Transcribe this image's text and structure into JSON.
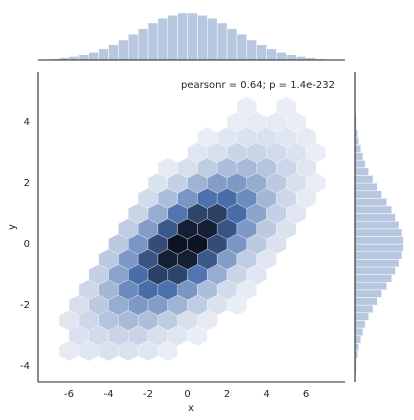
{
  "chart_data": [
    {
      "type": "hexbin",
      "x_label": "x",
      "y_label": "y",
      "annotation": "pearsonr = 0.64; p = 1.4e-232",
      "xlim": [
        -7.57,
        7.97
      ],
      "ylim": [
        -4.52,
        5.64
      ],
      "xticks": [
        -6,
        -4,
        -2,
        0,
        2,
        4,
        6
      ],
      "yticks": [
        -4,
        -2,
        0,
        2,
        4
      ],
      "color": "#4c72b0",
      "hexbins": {
        "x": [
          -6,
          -5,
          -4,
          -3,
          -2,
          -1,
          -5.5,
          -4.5,
          -3.5,
          -2.5,
          -1.5,
          -0.5,
          0.5,
          -6,
          -5,
          -4,
          -3,
          -2,
          -1,
          0,
          1,
          -5.5,
          -4.5,
          -3.5,
          -2.5,
          -1.5,
          -0.5,
          0.5,
          1.5,
          2.5,
          -5,
          -4,
          -3,
          -2,
          -1,
          0,
          1,
          2,
          3,
          -4.5,
          -3.5,
          -2.5,
          -1.5,
          -0.5,
          0.5,
          1.5,
          2.5,
          3.5,
          -4,
          -3,
          -2,
          -1,
          0,
          1,
          2,
          3,
          4,
          -3.5,
          -2.5,
          -1.5,
          -0.5,
          0.5,
          1.5,
          2.5,
          3.5,
          4.5,
          -3,
          -2,
          -1,
          0,
          1,
          2,
          3,
          4,
          5,
          -2.5,
          -1.5,
          -0.5,
          0.5,
          1.5,
          2.5,
          3.5,
          4.5,
          5.5,
          -2,
          -1,
          0,
          1,
          2,
          3,
          4,
          5,
          6,
          -1.5,
          -0.5,
          0.5,
          1.5,
          2.5,
          3.5,
          4.5,
          5.5,
          6.5,
          -1,
          0,
          1,
          2,
          3,
          4,
          5,
          6,
          0.5,
          1.5,
          2.5,
          3.5,
          4.5,
          5.5,
          6.5,
          1,
          2,
          3,
          4,
          5,
          6,
          2.5,
          3.5,
          4.5,
          5.5,
          3,
          5
        ],
        "y": [
          -3.5,
          -3.5,
          -3.5,
          -3.5,
          -3.5,
          -3.5,
          -3,
          -3,
          -3,
          -3,
          -3,
          -3,
          -3,
          -2.5,
          -2.5,
          -2.5,
          -2.5,
          -2.5,
          -2.5,
          -2.5,
          -2.5,
          -2,
          -2,
          -2,
          -2,
          -2,
          -2,
          -2,
          -2,
          -2,
          -1.5,
          -1.5,
          -1.5,
          -1.5,
          -1.5,
          -1.5,
          -1.5,
          -1.5,
          -1.5,
          -1,
          -1,
          -1,
          -1,
          -1,
          -1,
          -1,
          -1,
          -1,
          -0.5,
          -0.5,
          -0.5,
          -0.5,
          -0.5,
          -0.5,
          -0.5,
          -0.5,
          -0.5,
          0,
          0,
          0,
          0,
          0,
          0,
          0,
          0,
          0,
          0.5,
          0.5,
          0.5,
          0.5,
          0.5,
          0.5,
          0.5,
          0.5,
          0.5,
          1,
          1,
          1,
          1,
          1,
          1,
          1,
          1,
          1,
          1.5,
          1.5,
          1.5,
          1.5,
          1.5,
          1.5,
          1.5,
          1.5,
          1.5,
          2,
          2,
          2,
          2,
          2,
          2,
          2,
          2,
          2,
          2.5,
          2.5,
          2.5,
          2.5,
          2.5,
          2.5,
          2.5,
          2.5,
          3,
          3,
          3,
          3,
          3,
          3,
          3,
          3.5,
          3.5,
          3.5,
          3.5,
          3.5,
          3.5,
          4,
          4,
          4,
          4,
          4.5,
          4.5
        ],
        "counts": [
          2,
          3,
          4,
          4,
          3,
          1,
          4,
          6,
          8,
          8,
          5,
          3,
          1,
          3,
          7,
          12,
          15,
          14,
          10,
          5,
          2,
          5,
          11,
          19,
          24,
          23,
          17,
          10,
          4,
          1,
          7,
          16,
          28,
          36,
          35,
          25,
          14,
          6,
          2,
          9,
          21,
          36,
          47,
          46,
          34,
          19,
          8,
          3,
          11,
          24,
          42,
          55,
          55,
          41,
          23,
          10,
          3,
          11,
          25,
          44,
          58,
          58,
          44,
          25,
          11,
          4,
          10,
          23,
          41,
          55,
          55,
          42,
          24,
          11,
          4,
          8,
          19,
          34,
          46,
          47,
          36,
          21,
          9,
          3,
          6,
          14,
          25,
          35,
          36,
          28,
          16,
          7,
          2,
          4,
          9,
          17,
          23,
          24,
          19,
          11,
          5,
          1,
          2,
          5,
          10,
          14,
          15,
          12,
          7,
          3,
          3,
          5,
          8,
          8,
          6,
          4,
          1,
          1,
          3,
          4,
          4,
          3,
          2,
          1,
          2,
          2,
          1,
          1,
          1
        ]
      }
    },
    {
      "type": "histogram",
      "color": "#4c72b0",
      "alpha": 0.4,
      "xlim": [
        -7.57,
        7.97
      ],
      "ylim": [
        0,
        85
      ],
      "bins": [
        -7.5,
        -7,
        -6.5,
        -6,
        -5.5,
        -5,
        -4.5,
        -4,
        -3.5,
        -3,
        -2.5,
        -2,
        -1.5,
        -1,
        -0.5,
        0,
        0.5,
        1,
        1.5,
        2,
        2.5,
        3,
        3.5,
        4,
        4.5,
        5,
        5.5,
        6,
        6.5,
        7,
        7.5,
        8
      ],
      "counts": [
        1,
        2,
        4,
        6,
        9,
        13,
        19,
        26,
        34,
        44,
        53,
        63,
        71,
        76,
        80,
        80,
        76,
        71,
        63,
        53,
        44,
        34,
        26,
        19,
        13,
        9,
        6,
        4,
        2,
        1,
        1
      ]
    },
    {
      "type": "histogram",
      "orientation": "horizontal",
      "color": "#4c72b0",
      "alpha": 0.4,
      "ylim": [
        -4.52,
        5.64
      ],
      "xlim": [
        0,
        72
      ],
      "bins": [
        -4.5,
        -4.25,
        -4,
        -3.75,
        -3.5,
        -3.25,
        -3,
        -2.75,
        -2.5,
        -2.25,
        -2,
        -1.75,
        -1.5,
        -1.25,
        -1,
        -0.75,
        -0.5,
        -0.25,
        0,
        0.25,
        0.5,
        0.75,
        1,
        1.25,
        1.5,
        1.75,
        2,
        2.25,
        2.5,
        2.75,
        3,
        3.25,
        3.5,
        3.75,
        4,
        4.25,
        4.5,
        4.75,
        5,
        5.25,
        5.5
      ],
      "counts": [
        1,
        2,
        2,
        4,
        5,
        8,
        11,
        14,
        19,
        25,
        31,
        37,
        44,
        51,
        56,
        61,
        65,
        67,
        67,
        65,
        61,
        56,
        51,
        44,
        37,
        31,
        25,
        19,
        14,
        11,
        8,
        5,
        4,
        2,
        2,
        1,
        1,
        0,
        0,
        0
      ]
    }
  ]
}
